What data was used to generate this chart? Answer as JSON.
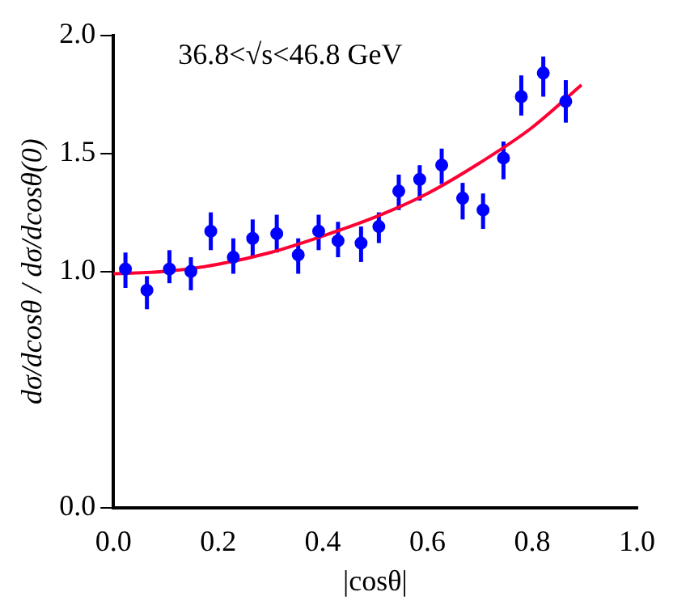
{
  "chart_data": {
    "type": "scatter",
    "xlabel": "|cosθ|",
    "ylabel": "dσ/dcosθ / dσ/dcosθ(0)",
    "annotations": [
      "36.8<√s<46.8 GeV"
    ],
    "xlim": [
      0,
      1
    ],
    "xticks": [
      {
        "value": 0,
        "label": "0.0"
      },
      0.2,
      0.4,
      0.6,
      0.8,
      {
        "value": 1,
        "label": "1.0"
      }
    ],
    "ylim": [
      0,
      2
    ],
    "yticks": [
      {
        "value": 0,
        "label": "0.0"
      },
      {
        "value": 1,
        "label": "1.0"
      },
      1.5,
      {
        "value": 2,
        "label": "2.0"
      }
    ],
    "grid": false,
    "legend": false,
    "series": [
      {
        "color": "#0000ff",
        "marker": "circle",
        "x": [
          0.023,
          0.064,
          0.107,
          0.148,
          0.186,
          0.229,
          0.266,
          0.312,
          0.353,
          0.392,
          0.429,
          0.473,
          0.507,
          0.545,
          0.585,
          0.627,
          0.667,
          0.706,
          0.745,
          0.779,
          0.821,
          0.864
        ],
        "values": [
          1.01,
          0.92,
          1.01,
          1.0,
          1.17,
          1.06,
          1.14,
          1.16,
          1.07,
          1.17,
          1.13,
          1.12,
          1.19,
          1.34,
          1.39,
          1.45,
          1.31,
          1.26,
          1.48,
          1.74,
          1.84,
          1.72
        ],
        "errors": [
          [
            0.93,
            1.08
          ],
          [
            0.84,
            0.98
          ],
          [
            0.95,
            1.09
          ],
          [
            0.92,
            1.06
          ],
          [
            1.09,
            1.25
          ],
          [
            0.99,
            1.14
          ],
          [
            1.06,
            1.22
          ],
          [
            1.08,
            1.24
          ],
          [
            0.99,
            1.14
          ],
          [
            1.09,
            1.24
          ],
          [
            1.06,
            1.21
          ],
          [
            1.04,
            1.19
          ],
          [
            1.12,
            1.25
          ],
          [
            1.26,
            1.41
          ],
          [
            1.3,
            1.45
          ],
          [
            1.37,
            1.52
          ],
          [
            1.22,
            1.375
          ],
          [
            1.18,
            1.33
          ],
          [
            1.39,
            1.55
          ],
          [
            1.66,
            1.83
          ],
          [
            1.74,
            1.91
          ],
          [
            1.63,
            1.81
          ]
        ]
      },
      {
        "type": "line",
        "color": "#ff0033",
        "marker": "none",
        "line_style": "solid",
        "x": [
          0,
          0.1,
          0.2,
          0.3,
          0.4,
          0.5,
          0.6,
          0.7,
          0.8,
          0.894
        ],
        "values": [
          0.99,
          1.0,
          1.03,
          1.08,
          1.15,
          1.23,
          1.33,
          1.46,
          1.61,
          1.79
        ]
      }
    ]
  }
}
